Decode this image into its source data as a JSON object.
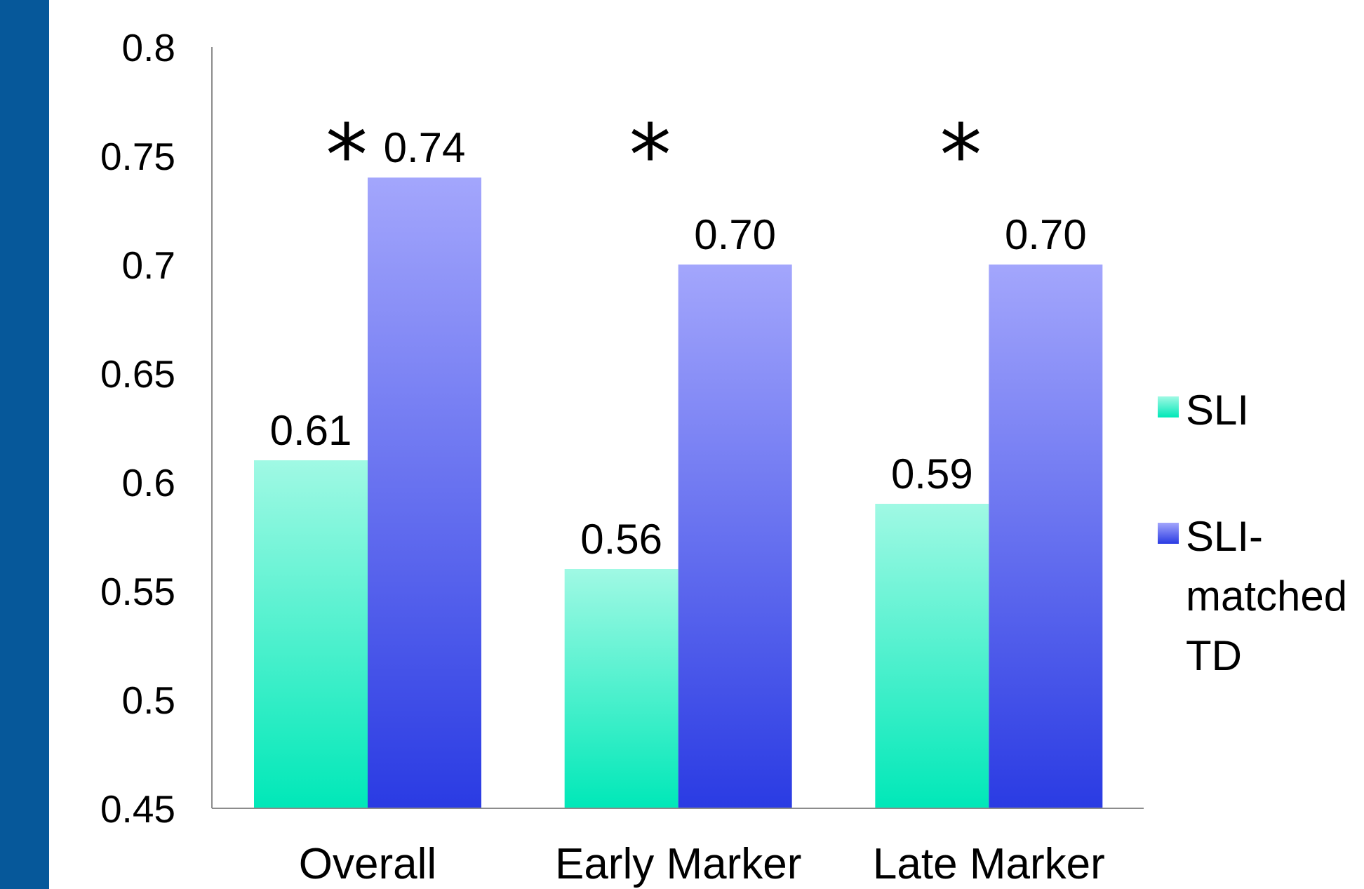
{
  "chart_data": {
    "type": "bar",
    "categories": [
      "Overall",
      "Early Marker",
      "Late Marker"
    ],
    "series": [
      {
        "name": "SLI",
        "values": [
          0.61,
          0.56,
          0.59
        ],
        "labels": [
          "0.61",
          "0.56",
          "0.59"
        ]
      },
      {
        "name": "SLI-matched TD",
        "values": [
          0.74,
          0.7,
          0.7
        ],
        "labels": [
          "0.74",
          "0.70",
          "0.70"
        ]
      }
    ],
    "ylim": [
      0.45,
      0.8
    ],
    "yticks": [
      0.45,
      0.5,
      0.55,
      0.6,
      0.65,
      0.7,
      0.75,
      0.8
    ],
    "ytick_labels": [
      "0.45",
      "0.5",
      "0.55",
      "0.6",
      "0.65",
      "0.7",
      "0.75",
      "0.8"
    ],
    "significance_markers": [
      "*",
      "*",
      "*"
    ],
    "legend_position": "right",
    "grid": false,
    "title": "",
    "xlabel": "",
    "ylabel": ""
  },
  "legend": {
    "items": [
      {
        "lines": [
          "SLI"
        ]
      },
      {
        "lines": [
          "SLI-",
          "matched",
          "TD"
        ]
      }
    ]
  },
  "colors": {
    "sidebar": "#06589a",
    "sli_top": "#a0f9e4",
    "sli_bottom": "#00e8b8",
    "td_top": "#a3a6fc",
    "td_bottom": "#2a3be3",
    "axis": "#8c8c8c"
  }
}
